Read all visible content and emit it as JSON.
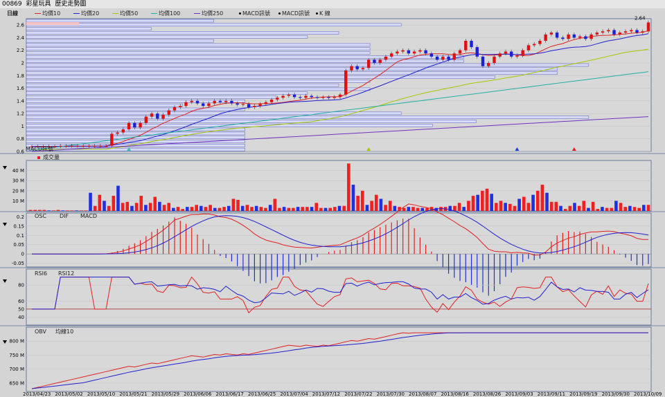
{
  "window": {
    "code": "00869",
    "name": "彩星玩具",
    "subtitle": "歷史走勢圖",
    "period": "日線"
  },
  "legend": [
    {
      "label": "均價10",
      "color": "#e02020"
    },
    {
      "label": "均價20",
      "color": "#2020d0"
    },
    {
      "label": "均價50",
      "color": "#a8c800"
    },
    {
      "label": "均價100",
      "color": "#20b0a0"
    },
    {
      "label": "均價250",
      "color": "#7030c0"
    },
    {
      "label": "MACD訊號",
      "color": "#000000"
    },
    {
      "label": "MACD訊號",
      "color": "#000000"
    },
    {
      "label": "K 線",
      "color": "#000000"
    }
  ],
  "chart_data": [
    {
      "type": "candlestick",
      "name": "price",
      "last_label": "2.64",
      "ylim": [
        0.6,
        2.7
      ],
      "yticks": [
        0.6,
        0.8,
        1,
        1.2,
        1.4,
        1.6,
        1.8,
        2,
        2.2,
        2.4,
        2.6
      ],
      "x": [
        "2013/04/23",
        "2013/05/02",
        "2013/05/10",
        "2013/05/21",
        "2013/05/29",
        "2013/06/06",
        "2013/06/17",
        "2013/06/25",
        "2013/07/04",
        "2013/07/12",
        "2013/07/22",
        "2013/07/30",
        "2013/08/07",
        "2013/08/16",
        "2013/08/26",
        "2013/09/03",
        "2013/09/11",
        "2013/09/19",
        "2013/09/30",
        "2013/10/09"
      ],
      "close_approx": [
        0.68,
        0.68,
        0.68,
        0.68,
        0.68,
        0.69,
        0.69,
        0.69,
        0.69,
        0.69,
        0.69,
        0.69,
        0.69,
        0.69,
        0.88,
        0.9,
        0.95,
        1.05,
        0.98,
        1.05,
        1.15,
        1.2,
        1.12,
        1.18,
        1.25,
        1.3,
        1.32,
        1.38,
        1.4,
        1.36,
        1.32,
        1.36,
        1.4,
        1.38,
        1.4,
        1.36,
        1.34,
        1.35,
        1.3,
        1.32,
        1.35,
        1.38,
        1.42,
        1.45,
        1.48,
        1.5,
        1.46,
        1.45,
        1.48,
        1.46,
        1.45,
        1.46,
        1.45,
        1.46,
        1.5,
        1.88,
        1.95,
        1.9,
        1.92,
        2.05,
        2.0,
        2.05,
        2.1,
        2.15,
        2.18,
        2.2,
        2.15,
        2.18,
        2.2,
        2.15,
        2.1,
        2.05,
        2.1,
        2.05,
        2.15,
        2.2,
        2.35,
        2.25,
        2.1,
        1.95,
        2.0,
        2.1,
        2.15,
        2.18,
        2.1,
        2.12,
        2.2,
        2.28,
        2.3,
        2.35,
        2.45,
        2.48,
        2.4,
        2.38,
        2.45,
        2.4,
        2.42,
        2.38,
        2.45,
        2.48,
        2.5,
        2.52,
        2.45,
        2.48,
        2.5,
        2.52,
        2.48,
        2.5,
        2.64
      ],
      "signals": [
        {
          "type": "up_triangle",
          "x_index": 17,
          "color": "#40c0a0"
        },
        {
          "type": "up_triangle",
          "x_index": 59,
          "color": "#a8c800"
        },
        {
          "type": "up_triangle",
          "x_index": 85,
          "color": "#2040d0"
        },
        {
          "type": "up_triangle",
          "x_index": 95,
          "color": "#e02020"
        }
      ],
      "volume_profile_relative": [
        0.3,
        0.6,
        0.2,
        0.5,
        0.45,
        0.3,
        0.55,
        0.55,
        0.55,
        0.7,
        0.7,
        0.9,
        0.85,
        0.85,
        0.75,
        0.55,
        0.5,
        0.55,
        0.45,
        0.4,
        0.35,
        0.25,
        0.35,
        0.6,
        0.9,
        0.72,
        0.65,
        0.35,
        0.35,
        0.35,
        0.35,
        0.35,
        0.35
      ]
    },
    {
      "type": "bar",
      "name": "成交量",
      "ylim": [
        0,
        50
      ],
      "yticks": [
        "10 M",
        "20 M",
        "30 M",
        "40 M"
      ],
      "values_m": [
        1,
        1,
        1,
        1,
        0.5,
        0.5,
        1,
        0.5,
        0.5,
        0.5,
        0.5,
        0.5,
        0.5,
        18,
        5,
        16,
        10,
        5,
        15,
        25,
        8,
        9,
        5,
        8,
        15,
        6,
        8,
        14,
        9,
        6,
        8,
        3,
        4,
        2,
        4,
        4,
        6,
        5,
        4,
        6,
        3,
        3,
        4,
        5,
        12,
        11,
        5,
        6,
        4,
        5,
        4,
        3,
        6,
        12,
        3,
        4,
        3,
        3,
        4,
        4,
        4,
        4,
        8,
        3,
        3,
        3,
        4,
        5,
        5,
        47,
        26,
        15,
        20,
        6,
        10,
        16,
        12,
        6,
        10,
        5,
        4,
        3,
        4,
        4,
        3,
        3,
        3,
        4,
        3,
        4,
        4,
        5,
        5,
        8,
        4,
        10,
        15,
        16,
        20,
        22,
        17,
        8,
        10,
        8,
        7,
        5,
        12,
        14,
        8,
        16,
        20,
        26,
        18,
        9,
        9,
        5,
        2,
        5,
        8,
        5,
        10,
        3,
        9,
        2,
        4,
        3,
        3,
        10,
        8,
        4,
        5,
        4,
        3,
        6,
        6
      ],
      "colors": "alternating_red_blue"
    },
    {
      "type": "line",
      "name": "MACD",
      "series": [
        {
          "name": "OSC",
          "style": "histogram"
        },
        {
          "name": "DIF",
          "color": "#e02020"
        },
        {
          "name": "MACD",
          "color": "#2020d0"
        }
      ],
      "ylim": [
        -0.07,
        0.22
      ],
      "yticks": [
        -0.05,
        0,
        0.05,
        0.1,
        0.15,
        0.2
      ]
    },
    {
      "type": "line",
      "name": "RSI",
      "series": [
        {
          "name": "RSI6",
          "color": "#e02020"
        },
        {
          "name": "RSI12",
          "color": "#2020d0"
        }
      ],
      "ylim": [
        30,
        100
      ],
      "yticks": [
        40,
        50,
        60,
        80
      ],
      "reference_line": 50
    },
    {
      "type": "line",
      "name": "OBV",
      "series": [
        {
          "name": "OBV",
          "color": "#e02020"
        },
        {
          "name": "均線10",
          "color": "#2020d0"
        }
      ],
      "ylim": [
        620,
        850
      ],
      "yticks": [
        "650 M",
        "700 M",
        "750 M",
        "800 M"
      ]
    }
  ],
  "panel_labels": {
    "volume": "成交量",
    "macd_signal_tag": "MACD訊號"
  }
}
